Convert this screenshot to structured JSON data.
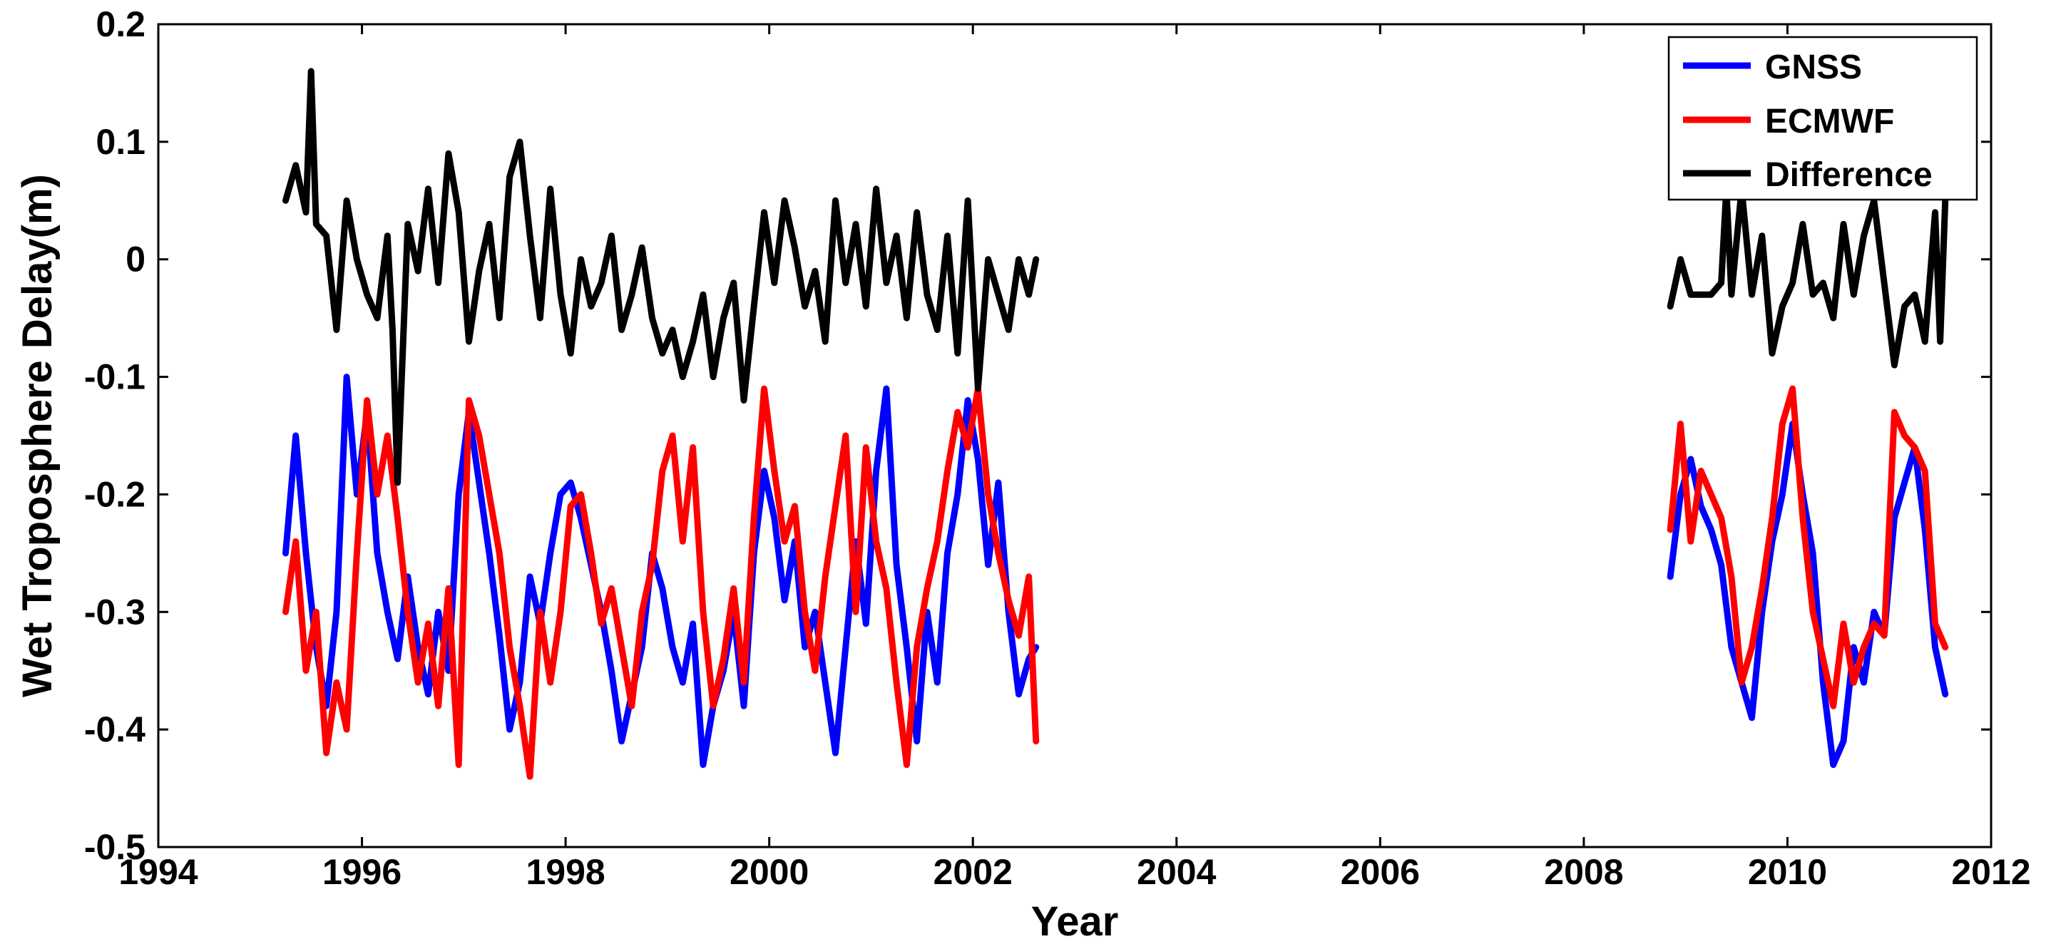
{
  "chart_data": {
    "type": "line",
    "title": "",
    "xlabel": "Year",
    "ylabel": "Wet Troposphere Delay(m)",
    "xlim": [
      1994,
      2012
    ],
    "ylim": [
      -0.5,
      0.2
    ],
    "xticks": [
      "1994",
      "1996",
      "1998",
      "2000",
      "2002",
      "2004",
      "2006",
      "2008",
      "2010",
      "2012"
    ],
    "yticks": [
      "0.2",
      "0.1",
      "0",
      "-0.1",
      "-0.2",
      "-0.3",
      "-0.4",
      "-0.5"
    ],
    "grid": false,
    "legend": "top-right",
    "series": [
      {
        "name": "GNSS",
        "color": "#0000ff",
        "segments": [
          {
            "x": [
              1995.25,
              1995.35,
              1995.45,
              1995.55,
              1995.65,
              1995.75,
              1995.85,
              1995.95,
              1996.05,
              1996.15,
              1996.25,
              1996.35,
              1996.45,
              1996.55,
              1996.65,
              1996.75,
              1996.85,
              1996.95,
              1997.05,
              1997.15,
              1997.25,
              1997.35,
              1997.45,
              1997.55,
              1997.65,
              1997.75,
              1997.85,
              1997.95,
              1998.05,
              1998.15,
              1998.25,
              1998.35,
              1998.45,
              1998.55,
              1998.65,
              1998.75,
              1998.85,
              1998.95,
              1999.05,
              1999.15,
              1999.25,
              1999.35,
              1999.45,
              1999.55,
              1999.65,
              1999.75,
              1999.85,
              1999.95,
              2000.05,
              2000.15,
              2000.25,
              2000.35,
              2000.45,
              2000.55,
              2000.65,
              2000.75,
              2000.85,
              2000.95,
              2001.05,
              2001.15,
              2001.25,
              2001.35,
              2001.45,
              2001.55,
              2001.65,
              2001.75,
              2001.85,
              2001.95,
              2002.05,
              2002.15,
              2002.25,
              2002.35,
              2002.45,
              2002.55,
              2002.62
            ],
            "y": [
              -0.25,
              -0.15,
              -0.25,
              -0.33,
              -0.38,
              -0.3,
              -0.1,
              -0.2,
              -0.13,
              -0.25,
              -0.3,
              -0.34,
              -0.27,
              -0.33,
              -0.37,
              -0.3,
              -0.35,
              -0.2,
              -0.13,
              -0.19,
              -0.25,
              -0.32,
              -0.4,
              -0.36,
              -0.27,
              -0.31,
              -0.25,
              -0.2,
              -0.19,
              -0.22,
              -0.26,
              -0.3,
              -0.35,
              -0.41,
              -0.37,
              -0.33,
              -0.25,
              -0.28,
              -0.33,
              -0.36,
              -0.31,
              -0.43,
              -0.38,
              -0.35,
              -0.3,
              -0.38,
              -0.25,
              -0.18,
              -0.22,
              -0.29,
              -0.24,
              -0.33,
              -0.3,
              -0.36,
              -0.42,
              -0.33,
              -0.24,
              -0.31,
              -0.18,
              -0.11,
              -0.26,
              -0.33,
              -0.41,
              -0.3,
              -0.36,
              -0.25,
              -0.2,
              -0.12,
              -0.17,
              -0.26,
              -0.19,
              -0.3,
              -0.37,
              -0.34,
              -0.33
            ]
          },
          {
            "x": [
              2008.85,
              2008.95,
              2009.05,
              2009.15,
              2009.25,
              2009.35,
              2009.45,
              2009.55,
              2009.65,
              2009.75,
              2009.85,
              2009.95,
              2010.05,
              2010.15,
              2010.25,
              2010.35,
              2010.45,
              2010.55,
              2010.65,
              2010.75,
              2010.85,
              2010.95,
              2011.05,
              2011.15,
              2011.25,
              2011.35,
              2011.45,
              2011.55
            ],
            "y": [
              -0.27,
              -0.2,
              -0.17,
              -0.21,
              -0.23,
              -0.26,
              -0.33,
              -0.36,
              -0.39,
              -0.3,
              -0.24,
              -0.2,
              -0.14,
              -0.2,
              -0.25,
              -0.36,
              -0.43,
              -0.41,
              -0.33,
              -0.36,
              -0.3,
              -0.32,
              -0.22,
              -0.19,
              -0.16,
              -0.23,
              -0.33,
              -0.37
            ]
          }
        ]
      },
      {
        "name": "ECMWF",
        "color": "#ff0000",
        "segments": [
          {
            "x": [
              1995.25,
              1995.35,
              1995.45,
              1995.55,
              1995.65,
              1995.75,
              1995.85,
              1995.95,
              1996.05,
              1996.15,
              1996.25,
              1996.35,
              1996.45,
              1996.55,
              1996.65,
              1996.75,
              1996.85,
              1996.95,
              1997.05,
              1997.15,
              1997.25,
              1997.35,
              1997.45,
              1997.55,
              1997.65,
              1997.75,
              1997.85,
              1997.95,
              1998.05,
              1998.15,
              1998.25,
              1998.35,
              1998.45,
              1998.55,
              1998.65,
              1998.75,
              1998.85,
              1998.95,
              1999.05,
              1999.15,
              1999.25,
              1999.35,
              1999.45,
              1999.55,
              1999.65,
              1999.75,
              1999.85,
              1999.95,
              2000.05,
              2000.15,
              2000.25,
              2000.35,
              2000.45,
              2000.55,
              2000.65,
              2000.75,
              2000.85,
              2000.95,
              2001.05,
              2001.15,
              2001.25,
              2001.35,
              2001.45,
              2001.55,
              2001.65,
              2001.75,
              2001.85,
              2001.95,
              2002.05,
              2002.15,
              2002.25,
              2002.35,
              2002.45,
              2002.55,
              2002.62
            ],
            "y": [
              -0.3,
              -0.24,
              -0.35,
              -0.3,
              -0.42,
              -0.36,
              -0.4,
              -0.25,
              -0.12,
              -0.2,
              -0.15,
              -0.22,
              -0.3,
              -0.36,
              -0.31,
              -0.38,
              -0.28,
              -0.43,
              -0.12,
              -0.15,
              -0.2,
              -0.25,
              -0.33,
              -0.38,
              -0.44,
              -0.3,
              -0.36,
              -0.3,
              -0.21,
              -0.2,
              -0.25,
              -0.31,
              -0.28,
              -0.33,
              -0.38,
              -0.3,
              -0.26,
              -0.18,
              -0.15,
              -0.24,
              -0.16,
              -0.3,
              -0.38,
              -0.34,
              -0.28,
              -0.36,
              -0.22,
              -0.11,
              -0.18,
              -0.24,
              -0.21,
              -0.3,
              -0.35,
              -0.27,
              -0.21,
              -0.15,
              -0.3,
              -0.16,
              -0.24,
              -0.28,
              -0.36,
              -0.43,
              -0.33,
              -0.28,
              -0.24,
              -0.18,
              -0.13,
              -0.16,
              -0.11,
              -0.2,
              -0.25,
              -0.29,
              -0.32,
              -0.27,
              -0.41
            ]
          },
          {
            "x": [
              2008.85,
              2008.95,
              2009.05,
              2009.15,
              2009.25,
              2009.35,
              2009.45,
              2009.55,
              2009.65,
              2009.75,
              2009.85,
              2009.95,
              2010.05,
              2010.15,
              2010.25,
              2010.35,
              2010.45,
              2010.55,
              2010.65,
              2010.75,
              2010.85,
              2010.95,
              2011.05,
              2011.15,
              2011.25,
              2011.35,
              2011.45,
              2011.55
            ],
            "y": [
              -0.23,
              -0.14,
              -0.24,
              -0.18,
              -0.2,
              -0.22,
              -0.27,
              -0.36,
              -0.33,
              -0.28,
              -0.22,
              -0.14,
              -0.11,
              -0.22,
              -0.3,
              -0.34,
              -0.38,
              -0.31,
              -0.36,
              -0.33,
              -0.31,
              -0.32,
              -0.13,
              -0.15,
              -0.16,
              -0.18,
              -0.31,
              -0.33
            ]
          }
        ]
      },
      {
        "name": "Difference",
        "color": "#000000",
        "segments": [
          {
            "x": [
              1995.25,
              1995.35,
              1995.45,
              1995.5,
              1995.55,
              1995.65,
              1995.75,
              1995.85,
              1995.95,
              1996.05,
              1996.15,
              1996.25,
              1996.3,
              1996.35,
              1996.45,
              1996.55,
              1996.65,
              1996.75,
              1996.85,
              1996.95,
              1997.05,
              1997.15,
              1997.25,
              1997.35,
              1997.45,
              1997.55,
              1997.65,
              1997.75,
              1997.85,
              1997.95,
              1998.05,
              1998.15,
              1998.25,
              1998.35,
              1998.45,
              1998.55,
              1998.65,
              1998.75,
              1998.85,
              1998.95,
              1999.05,
              1999.15,
              1999.25,
              1999.35,
              1999.45,
              1999.55,
              1999.65,
              1999.75,
              1999.85,
              1999.95,
              2000.05,
              2000.15,
              2000.25,
              2000.35,
              2000.45,
              2000.55,
              2000.65,
              2000.75,
              2000.85,
              2000.95,
              2001.05,
              2001.15,
              2001.25,
              2001.35,
              2001.45,
              2001.55,
              2001.65,
              2001.75,
              2001.85,
              2001.95,
              2002.05,
              2002.15,
              2002.25,
              2002.35,
              2002.45,
              2002.55,
              2002.62
            ],
            "y": [
              0.05,
              0.08,
              0.04,
              0.16,
              0.03,
              0.02,
              -0.06,
              0.05,
              0.0,
              -0.03,
              -0.05,
              0.02,
              -0.06,
              -0.19,
              0.03,
              -0.01,
              0.06,
              -0.02,
              0.09,
              0.04,
              -0.07,
              -0.01,
              0.03,
              -0.05,
              0.07,
              0.1,
              0.02,
              -0.05,
              0.06,
              -0.03,
              -0.08,
              0.0,
              -0.04,
              -0.02,
              0.02,
              -0.06,
              -0.03,
              0.01,
              -0.05,
              -0.08,
              -0.06,
              -0.1,
              -0.07,
              -0.03,
              -0.1,
              -0.05,
              -0.02,
              -0.12,
              -0.04,
              0.04,
              -0.02,
              0.05,
              0.01,
              -0.04,
              -0.01,
              -0.07,
              0.05,
              -0.02,
              0.03,
              -0.04,
              0.06,
              -0.02,
              0.02,
              -0.05,
              0.04,
              -0.03,
              -0.06,
              0.02,
              -0.08,
              0.05,
              -0.11,
              0.0,
              -0.03,
              -0.06,
              0.0,
              -0.03,
              0.0
            ]
          },
          {
            "x": [
              2008.85,
              2008.95,
              2009.05,
              2009.15,
              2009.25,
              2009.35,
              2009.4,
              2009.45,
              2009.55,
              2009.65,
              2009.75,
              2009.85,
              2009.95,
              2010.05,
              2010.15,
              2010.25,
              2010.35,
              2010.45,
              2010.55,
              2010.65,
              2010.75,
              2010.85,
              2010.95,
              2011.05,
              2011.15,
              2011.25,
              2011.35,
              2011.45,
              2011.5,
              2011.55
            ],
            "y": [
              -0.04,
              0.0,
              -0.03,
              -0.03,
              -0.03,
              -0.02,
              0.06,
              -0.03,
              0.06,
              -0.03,
              0.02,
              -0.08,
              -0.04,
              -0.02,
              0.03,
              -0.03,
              -0.02,
              -0.05,
              0.03,
              -0.03,
              0.02,
              0.05,
              -0.02,
              -0.09,
              -0.04,
              -0.03,
              -0.07,
              0.04,
              -0.07,
              0.05
            ]
          }
        ]
      }
    ]
  }
}
